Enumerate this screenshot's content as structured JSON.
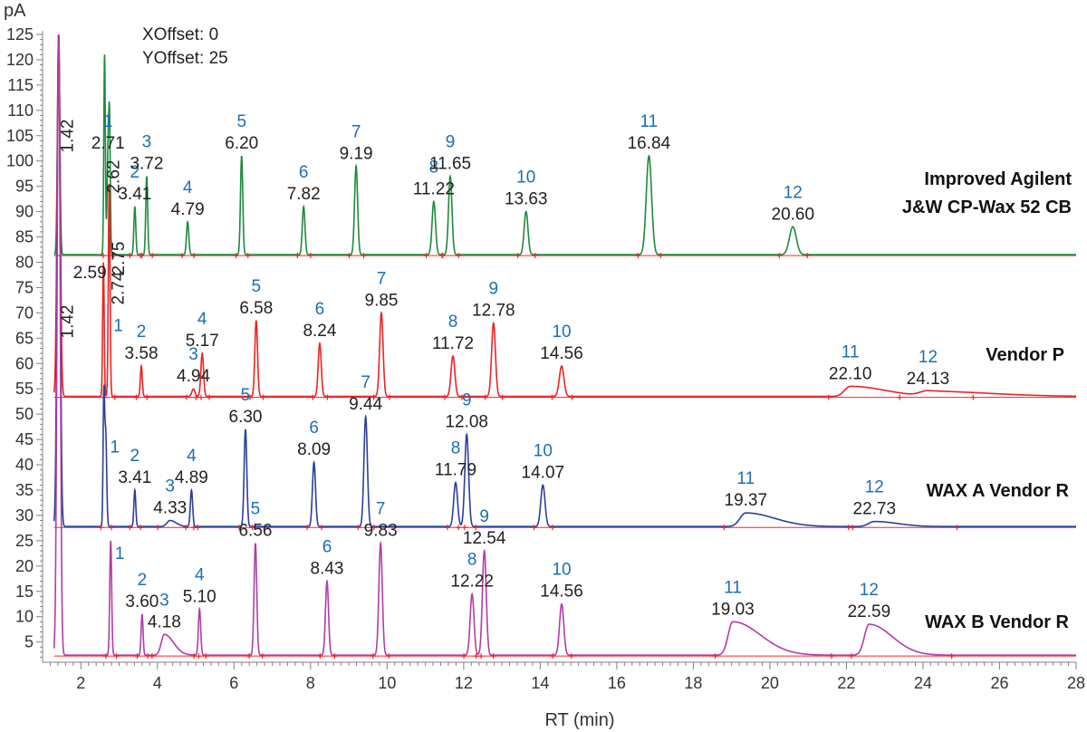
{
  "chart_data": {
    "type": "line",
    "title": "",
    "xlabel": "RT (min)",
    "ylabel": "pA",
    "xlim": [
      1,
      28
    ],
    "ylim": [
      1,
      125
    ],
    "x_ticks": [
      2,
      4,
      6,
      8,
      10,
      12,
      14,
      16,
      18,
      20,
      22,
      24,
      26,
      28
    ],
    "y_ticks": [
      5,
      10,
      15,
      20,
      25,
      30,
      35,
      40,
      45,
      50,
      55,
      60,
      65,
      70,
      75,
      80,
      85,
      90,
      95,
      100,
      105,
      110,
      115,
      120,
      125
    ],
    "annotations": {
      "xoffset": "XOffset: 0",
      "yoffset": "YOffset: 25"
    },
    "series": [
      {
        "name": "Improved Agilent J&W CP-Wax 52 CB",
        "label_line1": "Improved Agilent",
        "label_line2": "J&W CP-Wax 52 CB",
        "color": "#1e8a3c",
        "baseline": 81.5,
        "solvent_peaks": [
          {
            "rt": 1.42,
            "label": "1.42",
            "height": 125,
            "width": 0.03
          },
          {
            "rt": 2.62,
            "label": "2.62",
            "height": 121,
            "width": 0.02
          },
          {
            "rt": 2.75,
            "label": "2.75",
            "height": 105,
            "width": 0.02
          }
        ],
        "peaks": [
          {
            "num": "1",
            "rt": 2.71,
            "label": "2.71",
            "height": 101,
            "width": 0.025,
            "tail": 1
          },
          {
            "num": "2",
            "rt": 3.41,
            "label": "3.41",
            "height": 91,
            "width": 0.025,
            "tail": 1
          },
          {
            "num": "3",
            "rt": 3.72,
            "label": "3.72",
            "height": 97,
            "width": 0.025,
            "tail": 1
          },
          {
            "num": "4",
            "rt": 4.79,
            "label": "4.79",
            "height": 88,
            "width": 0.03,
            "tail": 1
          },
          {
            "num": "5",
            "rt": 6.2,
            "label": "6.20",
            "height": 101,
            "width": 0.03,
            "tail": 1
          },
          {
            "num": "6",
            "rt": 7.82,
            "label": "7.82",
            "height": 91,
            "width": 0.035,
            "tail": 1
          },
          {
            "num": "7",
            "rt": 9.19,
            "label": "9.19",
            "height": 99,
            "width": 0.04,
            "tail": 1
          },
          {
            "num": "8",
            "rt": 11.22,
            "label": "11.22",
            "height": 92,
            "width": 0.045,
            "tail": 1
          },
          {
            "num": "9",
            "rt": 11.65,
            "label": "11.65",
            "height": 97,
            "width": 0.045,
            "tail": 1
          },
          {
            "num": "10",
            "rt": 13.63,
            "label": "13.63",
            "height": 90,
            "width": 0.05,
            "tail": 1
          },
          {
            "num": "11",
            "rt": 16.84,
            "label": "16.84",
            "height": 101,
            "width": 0.07,
            "tail": 1
          },
          {
            "num": "12",
            "rt": 20.6,
            "label": "20.60",
            "height": 87,
            "width": 0.09,
            "tail": 1
          }
        ]
      },
      {
        "name": "Vendor P",
        "label_line1": "Vendor P",
        "color": "#ee2222",
        "baseline": 53.5,
        "solvent_peaks": [
          {
            "rt": 1.42,
            "label": "1.42",
            "height": 125,
            "width": 0.04
          },
          {
            "rt": 2.59,
            "label": "2.59",
            "height": 80,
            "width": 0.02
          },
          {
            "rt": 2.74,
            "label": "2.74",
            "height": 79,
            "width": 0.02
          }
        ],
        "peaks": [
          {
            "num": "1",
            "rt": 2.74,
            "label": "",
            "height": 70,
            "width": 0.025,
            "tail": 1
          },
          {
            "num": "2",
            "rt": 3.58,
            "label": "3.58",
            "height": 59.5,
            "width": 0.025,
            "tail": 1
          },
          {
            "num": "3",
            "rt": 4.94,
            "label": "4.94",
            "height": 55,
            "width": 0.04,
            "tail": 1
          },
          {
            "num": "4",
            "rt": 5.17,
            "label": "5.17",
            "height": 62,
            "width": 0.035,
            "tail": 1
          },
          {
            "num": "5",
            "rt": 6.58,
            "label": "6.58",
            "height": 68.5,
            "width": 0.035,
            "tail": 1
          },
          {
            "num": "6",
            "rt": 8.24,
            "label": "8.24",
            "height": 64,
            "width": 0.04,
            "tail": 1
          },
          {
            "num": "7",
            "rt": 9.85,
            "label": "9.85",
            "height": 70,
            "width": 0.045,
            "tail": 1
          },
          {
            "num": "8",
            "rt": 11.72,
            "label": "11.72",
            "height": 61.5,
            "width": 0.05,
            "tail": 1
          },
          {
            "num": "9",
            "rt": 12.78,
            "label": "12.78",
            "height": 68,
            "width": 0.05,
            "tail": 1
          },
          {
            "num": "10",
            "rt": 14.56,
            "label": "14.56",
            "height": 59.5,
            "width": 0.06,
            "tail": 1
          },
          {
            "num": "11",
            "rt": 22.1,
            "label": "22.10",
            "height": 55.5,
            "width": 0.15,
            "tail": 6
          },
          {
            "num": "12",
            "rt": 24.13,
            "label": "24.13",
            "height": 54.5,
            "width": 0.2,
            "tail": 8
          }
        ]
      },
      {
        "name": "WAX A Vendor R",
        "label_line1": "WAX A Vendor R",
        "color": "#2b3f9a",
        "baseline": 27.8,
        "solvent_peaks": [
          {
            "rt": 1.42,
            "label": "",
            "height": 125,
            "width": 0.04
          },
          {
            "rt": 2.6,
            "label": "",
            "height": 53,
            "width": 0.02
          }
        ],
        "peaks": [
          {
            "num": "1",
            "rt": 2.65,
            "label": "",
            "height": 46,
            "width": 0.025,
            "tail": 1
          },
          {
            "num": "2",
            "rt": 3.41,
            "label": "3.41",
            "height": 35,
            "width": 0.025,
            "tail": 1
          },
          {
            "num": "3",
            "rt": 4.33,
            "label": "4.33",
            "height": 29,
            "width": 0.08,
            "tail": 2
          },
          {
            "num": "4",
            "rt": 4.89,
            "label": "4.89",
            "height": 35,
            "width": 0.03,
            "tail": 1
          },
          {
            "num": "5",
            "rt": 6.3,
            "label": "6.30",
            "height": 47,
            "width": 0.035,
            "tail": 1
          },
          {
            "num": "6",
            "rt": 8.09,
            "label": "8.09",
            "height": 40.5,
            "width": 0.04,
            "tail": 1
          },
          {
            "num": "7",
            "rt": 9.44,
            "label": "9.44",
            "height": 49.5,
            "width": 0.045,
            "tail": 1
          },
          {
            "num": "8",
            "rt": 11.79,
            "label": "11.79",
            "height": 36.5,
            "width": 0.05,
            "tail": 1
          },
          {
            "num": "9",
            "rt": 12.08,
            "label": "12.08",
            "height": 46,
            "width": 0.05,
            "tail": 1
          },
          {
            "num": "10",
            "rt": 14.07,
            "label": "14.07",
            "height": 36,
            "width": 0.055,
            "tail": 1
          },
          {
            "num": "11",
            "rt": 19.37,
            "label": "19.37",
            "height": 30.5,
            "width": 0.15,
            "tail": 5
          },
          {
            "num": "12",
            "rt": 22.73,
            "label": "22.73",
            "height": 28.8,
            "width": 0.15,
            "tail": 4
          }
        ]
      },
      {
        "name": "WAX B Vendor R",
        "label_line1": "WAX B Vendor R",
        "color": "#b03da6",
        "baseline": 2.4,
        "solvent_peaks": [
          {
            "rt": 1.42,
            "label": "",
            "height": 125,
            "width": 0.04
          }
        ],
        "peaks": [
          {
            "num": "1",
            "rt": 2.78,
            "label": "",
            "height": 25,
            "width": 0.025,
            "tail": 1
          },
          {
            "num": "2",
            "rt": 3.6,
            "label": "3.60",
            "height": 10.5,
            "width": 0.025,
            "tail": 1
          },
          {
            "num": "3",
            "rt": 4.18,
            "label": "4.18",
            "height": 6.5,
            "width": 0.08,
            "tail": 3
          },
          {
            "num": "4",
            "rt": 5.1,
            "label": "5.10",
            "height": 11.5,
            "width": 0.03,
            "tail": 1
          },
          {
            "num": "5",
            "rt": 6.56,
            "label": "6.56",
            "height": 24.5,
            "width": 0.035,
            "tail": 1
          },
          {
            "num": "6",
            "rt": 8.43,
            "label": "8.43",
            "height": 17,
            "width": 0.04,
            "tail": 1
          },
          {
            "num": "7",
            "rt": 9.83,
            "label": "9.83",
            "height": 24.5,
            "width": 0.045,
            "tail": 1
          },
          {
            "num": "8",
            "rt": 12.22,
            "label": "12.22",
            "height": 14.5,
            "width": 0.05,
            "tail": 1
          },
          {
            "num": "9",
            "rt": 12.54,
            "label": "12.54",
            "height": 23,
            "width": 0.05,
            "tail": 1
          },
          {
            "num": "10",
            "rt": 14.56,
            "label": "14.56",
            "height": 12.5,
            "width": 0.055,
            "tail": 1
          },
          {
            "num": "11",
            "rt": 19.03,
            "label": "19.03",
            "height": 9,
            "width": 0.12,
            "tail": 6
          },
          {
            "num": "12",
            "rt": 22.59,
            "label": "22.59",
            "height": 8.5,
            "width": 0.12,
            "tail": 5
          }
        ]
      }
    ]
  }
}
